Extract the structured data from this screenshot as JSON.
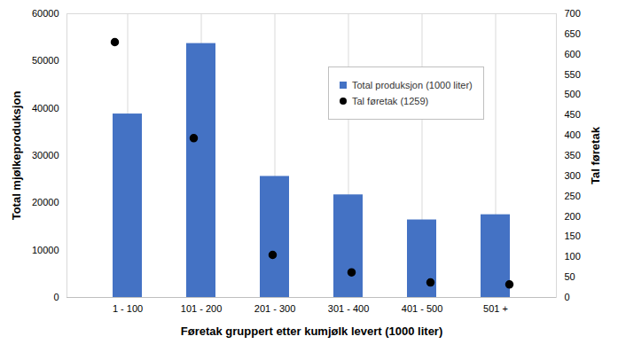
{
  "chart_data": {
    "type": "bar",
    "categories": [
      "1 - 100",
      "101 - 200",
      "201 - 300",
      "301 - 400",
      "401 - 500",
      "501 +"
    ],
    "xlabel": "Føretak gruppert etter kumjølk levert (1000 liter)",
    "ylabel": "Total mjølkeproduksjon",
    "y2label": "Tal føretak",
    "ylim": [
      0,
      60000
    ],
    "yticks": [
      0,
      10000,
      20000,
      30000,
      40000,
      50000,
      60000
    ],
    "y2lim": [
      0,
      700
    ],
    "y2ticks": [
      0,
      50,
      100,
      150,
      200,
      250,
      300,
      350,
      400,
      450,
      500,
      550,
      600,
      650,
      700
    ],
    "grid": true,
    "legend": "right",
    "series": [
      {
        "name": "Total produksjon (1000 liter)",
        "type": "bar",
        "color": "#4472c4",
        "values": [
          38800,
          53700,
          25600,
          21700,
          16400,
          17500
        ]
      },
      {
        "name": "Tal føretak (1259)",
        "type": "scatter",
        "axis": "y2",
        "color": "#000000",
        "marker": "circle",
        "values": [
          630,
          393,
          105,
          62,
          37,
          32
        ]
      }
    ]
  }
}
